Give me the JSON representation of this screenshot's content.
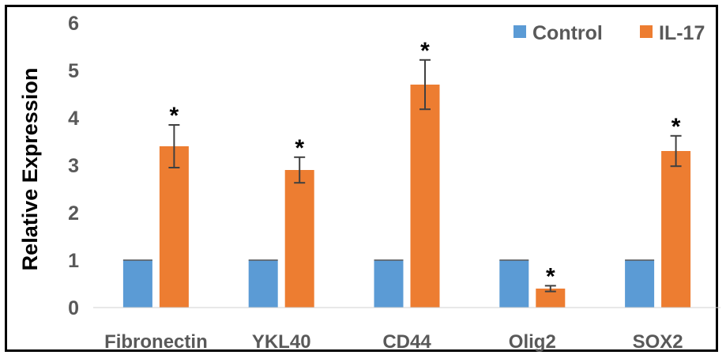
{
  "chart_data": {
    "type": "bar",
    "categories": [
      "Fibronectin",
      "YKL40",
      "CD44",
      "Olig2",
      "SOX2"
    ],
    "series": [
      {
        "name": "Control",
        "color": "#5B9BD5",
        "values": [
          1,
          1,
          1,
          1,
          1
        ],
        "errors": [
          0,
          0,
          0,
          0,
          0
        ],
        "significance": [
          "",
          "",
          "",
          "",
          ""
        ]
      },
      {
        "name": "IL-17",
        "color": "#ED7D31",
        "values": [
          3.4,
          2.9,
          4.7,
          0.4,
          3.3
        ],
        "errors": [
          0.45,
          0.27,
          0.52,
          0.06,
          0.32
        ],
        "significance": [
          "*",
          "*",
          "*",
          "*",
          "*"
        ]
      }
    ],
    "ylabel": "Relative Expression",
    "ylim": [
      0,
      6
    ],
    "yticks": [
      "0",
      "1",
      "2",
      "3",
      "4",
      "5",
      "6"
    ],
    "grid": false,
    "legend_position": "top-right",
    "errorbar_color": "#404040"
  }
}
